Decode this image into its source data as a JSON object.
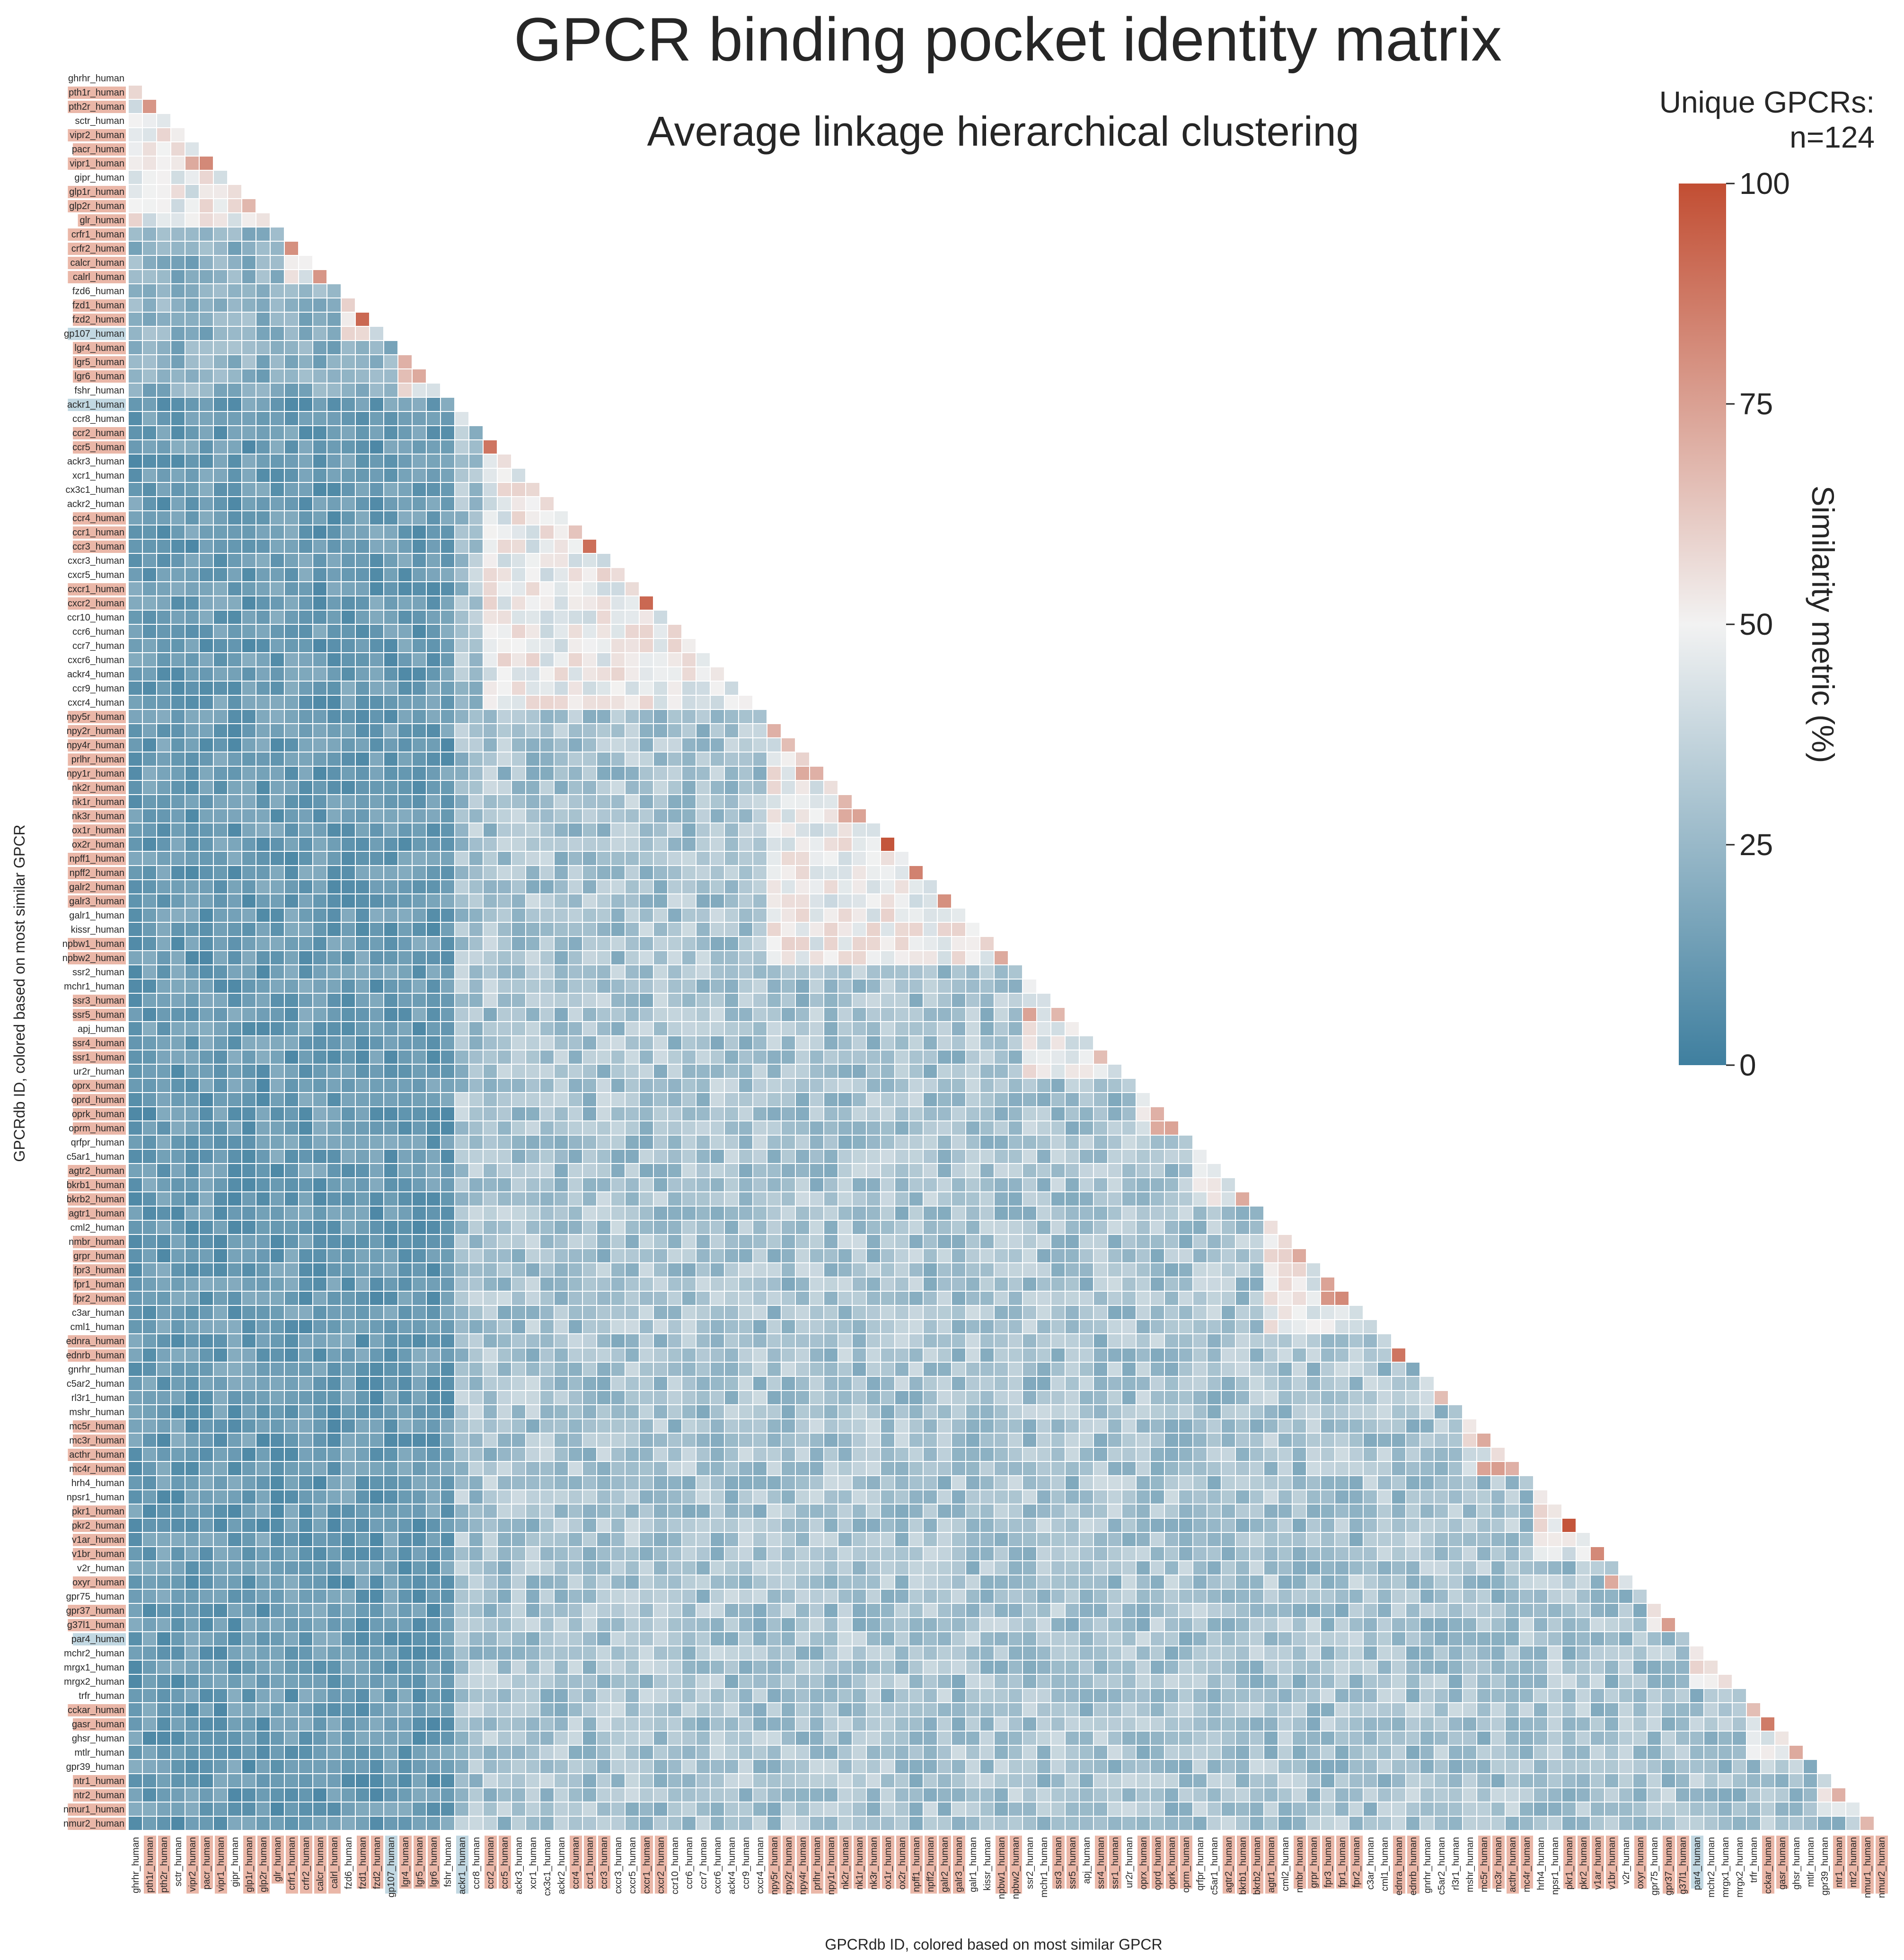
{
  "chart_data": {
    "type": "heatmap",
    "title": "GPCR binding pocket identity matrix",
    "subtitle": "Average linkage hierarchical clustering",
    "annotation": [
      "Unique GPCRs:",
      "n=124"
    ],
    "xlabel": "GPCRdb ID, colored based on most similar GPCR",
    "ylabel": "GPCRdb ID, colored based on most similar GPCR",
    "mask": "upper-triangle",
    "colorbar": {
      "label": "Similarity metric (%)",
      "range": [
        0,
        100
      ],
      "ticks": [
        0,
        25,
        50,
        75,
        100
      ],
      "colors": [
        "#3f7f9f",
        "#f2f2f2",
        "#c24e33"
      ]
    },
    "labels": [
      "ghrhr_human",
      "pth1r_human",
      "pth2r_human",
      "sctr_human",
      "vipr2_human",
      "pacr_human",
      "vipr1_human",
      "gipr_human",
      "glp1r_human",
      "glp2r_human",
      "glr_human",
      "crfr1_human",
      "crfr2_human",
      "calcr_human",
      "calrl_human",
      "fzd6_human",
      "fzd1_human",
      "fzd2_human",
      "gp107_human",
      "lgr4_human",
      "lgr5_human",
      "lgr6_human",
      "fshr_human",
      "ackr1_human",
      "ccr8_human",
      "ccr2_human",
      "ccr5_human",
      "ackr3_human",
      "xcr1_human",
      "cx3c1_human",
      "ackr2_human",
      "ccr4_human",
      "ccr1_human",
      "ccr3_human",
      "cxcr3_human",
      "cxcr5_human",
      "cxcr1_human",
      "cxcr2_human",
      "ccr10_human",
      "ccr6_human",
      "ccr7_human",
      "cxcr6_human",
      "ackr4_human",
      "ccr9_human",
      "cxcr4_human",
      "npy5r_human",
      "npy2r_human",
      "npy4r_human",
      "prlhr_human",
      "npy1r_human",
      "nk2r_human",
      "nk1r_human",
      "nk3r_human",
      "ox1r_human",
      "ox2r_human",
      "npff1_human",
      "npff2_human",
      "galr2_human",
      "galr3_human",
      "galr1_human",
      "kissr_human",
      "npbw1_human",
      "npbw2_human",
      "ssr2_human",
      "mchr1_human",
      "ssr3_human",
      "ssr5_human",
      "apj_human",
      "ssr4_human",
      "ssr1_human",
      "ur2r_human",
      "oprx_human",
      "oprd_human",
      "oprk_human",
      "oprm_human",
      "qrfpr_human",
      "c5ar1_human",
      "agtr2_human",
      "bkrb1_human",
      "bkrb2_human",
      "agtr1_human",
      "cml2_human",
      "nmbr_human",
      "grpr_human",
      "fpr3_human",
      "fpr1_human",
      "fpr2_human",
      "c3ar_human",
      "cml1_human",
      "ednra_human",
      "ednrb_human",
      "gnrhr_human",
      "c5ar2_human",
      "rl3r1_human",
      "mshr_human",
      "mc5r_human",
      "mc3r_human",
      "acthr_human",
      "mc4r_human",
      "hrh4_human",
      "npsr1_human",
      "pkr1_human",
      "pkr2_human",
      "v1ar_human",
      "v1br_human",
      "v2r_human",
      "oxyr_human",
      "gpr75_human",
      "gpr37_human",
      "g37l1_human",
      "par4_human",
      "mchr2_human",
      "mrgx1_human",
      "mrgx2_human",
      "trfr_human",
      "cckar_human",
      "gasr_human",
      "ghsr_human",
      "mtlr_human",
      "gpr39_human",
      "ntr1_human",
      "ntr2_human",
      "nmur1_human",
      "nmur2_human"
    ],
    "label_highlight": {
      "warm": [
        "pth1r_human",
        "pth2r_human",
        "vipr2_human",
        "pacr_human",
        "vipr1_human",
        "glp1r_human",
        "glp2r_human",
        "glr_human",
        "crfr1_human",
        "crfr2_human",
        "calcr_human",
        "calrl_human",
        "fzd1_human",
        "fzd2_human",
        "lgr4_human",
        "lgr5_human",
        "lgr6_human",
        "ccr2_human",
        "ccr5_human",
        "ccr4_human",
        "ccr1_human",
        "ccr3_human",
        "cxcr1_human",
        "cxcr2_human",
        "npy5r_human",
        "npy2r_human",
        "npy4r_human",
        "prlhr_human",
        "npy1r_human",
        "nk2r_human",
        "nk1r_human",
        "nk3r_human",
        "ox1r_human",
        "ox2r_human",
        "npff1_human",
        "npff2_human",
        "galr2_human",
        "galr3_human",
        "npbw1_human",
        "npbw2_human",
        "ssr3_human",
        "ssr5_human",
        "ssr4_human",
        "ssr1_human",
        "oprx_human",
        "oprd_human",
        "oprk_human",
        "oprm_human",
        "agtr2_human",
        "bkrb1_human",
        "bkrb2_human",
        "agtr1_human",
        "nmbr_human",
        "grpr_human",
        "fpr3_human",
        "fpr1_human",
        "fpr2_human",
        "ednra_human",
        "ednrb_human",
        "mc5r_human",
        "mc3r_human",
        "acthr_human",
        "mc4r_human",
        "pkr1_human",
        "pkr2_human",
        "v1ar_human",
        "v1br_human",
        "oxyr_human",
        "gpr37_human",
        "g37l1_human",
        "cckar_human",
        "gasr_human",
        "ntr1_human",
        "ntr2_human",
        "nmur1_human",
        "nmur2_human"
      ],
      "cool": [
        "gp107_human",
        "ackr1_human",
        "par4_human"
      ]
    },
    "strong_pairs": [
      [
        "pth1r_human",
        "pth2r_human",
        78
      ],
      [
        "pacr_human",
        "vipr1_human",
        82
      ],
      [
        "vipr2_human",
        "vipr1_human",
        72
      ],
      [
        "glp1r_human",
        "glp2r_human",
        68
      ],
      [
        "crfr1_human",
        "crfr2_human",
        80
      ],
      [
        "calcr_human",
        "calrl_human",
        78
      ],
      [
        "fzd1_human",
        "fzd2_human",
        92
      ],
      [
        "fzd6_human",
        "fzd1_human",
        60
      ],
      [
        "lgr4_human",
        "lgr5_human",
        70
      ],
      [
        "lgr5_human",
        "lgr6_human",
        72
      ],
      [
        "lgr4_human",
        "lgr6_human",
        66
      ],
      [
        "ccr2_human",
        "ccr5_human",
        88
      ],
      [
        "ccr4_human",
        "ccr1_human",
        64
      ],
      [
        "ccr1_human",
        "ccr3_human",
        90
      ],
      [
        "cxcr1_human",
        "cxcr2_human",
        92
      ],
      [
        "npy2r_human",
        "npy5r_human",
        70
      ],
      [
        "npy4r_human",
        "npy2r_human",
        66
      ],
      [
        "npy1r_human",
        "npy4r_human",
        72
      ],
      [
        "prlhr_human",
        "npy1r_human",
        70
      ],
      [
        "nk2r_human",
        "nk1r_human",
        68
      ],
      [
        "nk1r_human",
        "nk3r_human",
        74
      ],
      [
        "nk2r_human",
        "nk3r_human",
        72
      ],
      [
        "ox1r_human",
        "ox2r_human",
        98
      ],
      [
        "npff1_human",
        "npff2_human",
        84
      ],
      [
        "galr2_human",
        "galr3_human",
        80
      ],
      [
        "npbw1_human",
        "npbw2_human",
        72
      ],
      [
        "ssr2_human",
        "ssr5_human",
        74
      ],
      [
        "ssr3_human",
        "ssr5_human",
        68
      ],
      [
        "ssr4_human",
        "ssr1_human",
        66
      ],
      [
        "oprd_human",
        "oprk_human",
        70
      ],
      [
        "oprk_human",
        "oprm_human",
        74
      ],
      [
        "oprd_human",
        "oprm_human",
        72
      ],
      [
        "bkrb1_human",
        "bkrb2_human",
        72
      ],
      [
        "nmbr_human",
        "grpr_human",
        72
      ],
      [
        "fpr3_human",
        "fpr1_human",
        74
      ],
      [
        "fpr1_human",
        "fpr2_human",
        82
      ],
      [
        "fpr3_human",
        "fpr2_human",
        78
      ],
      [
        "ednra_human",
        "ednrb_human",
        88
      ],
      [
        "rl3r1_human",
        "c5ar2_human",
        66
      ],
      [
        "mc5r_human",
        "mc3r_human",
        72
      ],
      [
        "mc3r_human",
        "mc4r_human",
        76
      ],
      [
        "mc5r_human",
        "mc4r_human",
        74
      ],
      [
        "acthr_human",
        "mc4r_human",
        70
      ],
      [
        "pkr1_human",
        "pkr2_human",
        98
      ],
      [
        "v1ar_human",
        "v1br_human",
        82
      ],
      [
        "v1br_human",
        "oxyr_human",
        72
      ],
      [
        "gpr37_human",
        "g37l1_human",
        76
      ],
      [
        "trfr_human",
        "cckar_human",
        66
      ],
      [
        "cckar_human",
        "gasr_human",
        86
      ],
      [
        "ghsr_human",
        "mtlr_human",
        72
      ],
      [
        "ntr1_human",
        "ntr2_human",
        70
      ],
      [
        "nmur1_human",
        "nmur2_human",
        68
      ]
    ]
  }
}
